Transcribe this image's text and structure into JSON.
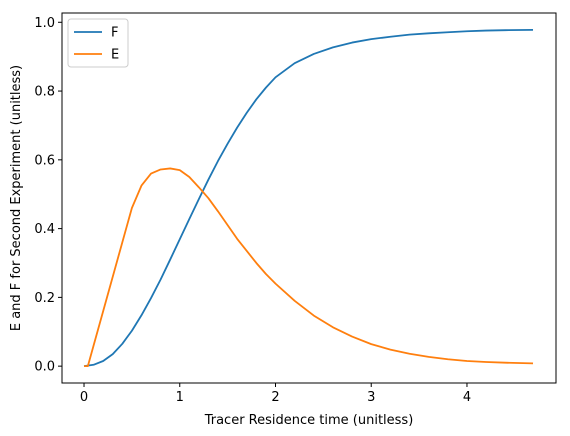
{
  "chart_data": {
    "type": "line",
    "xlabel": "Tracer Residence time (unitless)",
    "ylabel": "E and F for Second Experiment (unitless)",
    "xlim": [
      -0.23,
      4.93
    ],
    "ylim": [
      -0.049,
      1.027
    ],
    "xticks": [
      {
        "value": 0,
        "label": "0"
      },
      {
        "value": 1,
        "label": "1"
      },
      {
        "value": 2,
        "label": "2"
      },
      {
        "value": 3,
        "label": "3"
      },
      {
        "value": 4,
        "label": "4"
      }
    ],
    "yticks": [
      {
        "value": 0.0,
        "label": "0.0"
      },
      {
        "value": 0.2,
        "label": "0.2"
      },
      {
        "value": 0.4,
        "label": "0.4"
      },
      {
        "value": 0.6,
        "label": "0.6"
      },
      {
        "value": 0.8,
        "label": "0.8"
      },
      {
        "value": 1.0,
        "label": "1.0"
      }
    ],
    "grid": false,
    "legend_position": "top-left",
    "series": [
      {
        "name": "F",
        "color": "#1f77b4",
        "x": [
          0,
          0.1,
          0.2,
          0.3,
          0.4,
          0.5,
          0.6,
          0.7,
          0.8,
          0.9,
          1.0,
          1.1,
          1.2,
          1.3,
          1.4,
          1.5,
          1.6,
          1.7,
          1.8,
          1.9,
          2.0,
          2.2,
          2.4,
          2.6,
          2.8,
          3.0,
          3.2,
          3.4,
          3.6,
          3.8,
          4.0,
          4.2,
          4.4,
          4.69
        ],
        "y": [
          0.0,
          0.004,
          0.015,
          0.035,
          0.065,
          0.103,
          0.148,
          0.198,
          0.252,
          0.31,
          0.369,
          0.428,
          0.486,
          0.543,
          0.597,
          0.647,
          0.694,
          0.737,
          0.776,
          0.81,
          0.84,
          0.881,
          0.908,
          0.927,
          0.941,
          0.951,
          0.958,
          0.964,
          0.968,
          0.971,
          0.974,
          0.976,
          0.977,
          0.978
        ]
      },
      {
        "name": "E",
        "color": "#ff7f0e",
        "x": [
          0,
          0.04,
          0.1,
          0.2,
          0.3,
          0.4,
          0.5,
          0.6,
          0.7,
          0.8,
          0.9,
          1.0,
          1.1,
          1.2,
          1.3,
          1.4,
          1.5,
          1.6,
          1.7,
          1.8,
          1.9,
          2.0,
          2.2,
          2.4,
          2.6,
          2.8,
          3.0,
          3.2,
          3.4,
          3.6,
          3.8,
          4.0,
          4.2,
          4.4,
          4.69
        ],
        "y": [
          0.0,
          0.0,
          0.06,
          0.16,
          0.26,
          0.36,
          0.46,
          0.525,
          0.56,
          0.572,
          0.575,
          0.57,
          0.55,
          0.52,
          0.488,
          0.45,
          0.41,
          0.37,
          0.335,
          0.3,
          0.268,
          0.24,
          0.19,
          0.147,
          0.113,
          0.086,
          0.064,
          0.048,
          0.036,
          0.027,
          0.02,
          0.015,
          0.012,
          0.01,
          0.008
        ]
      }
    ]
  }
}
